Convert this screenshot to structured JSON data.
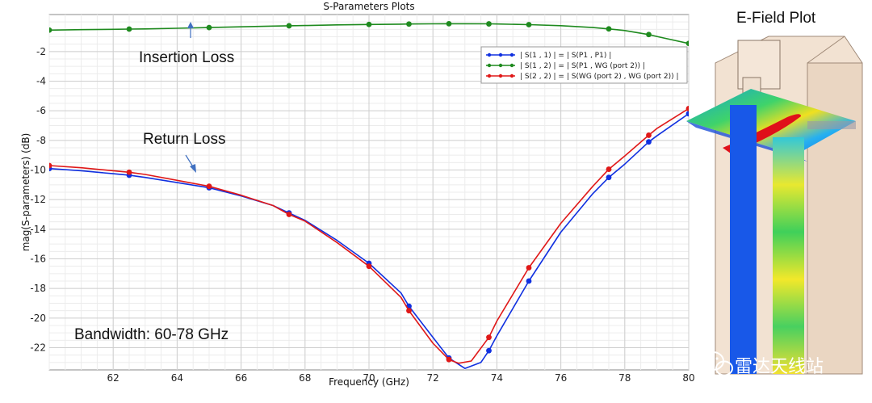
{
  "chart_data": {
    "type": "line",
    "title": "S-Parameters Plots",
    "xlabel": "Frequency (GHz)",
    "ylabel": "mag(S-parameters) (dB)",
    "xlim": [
      60,
      80
    ],
    "ylim": [
      -23.5,
      0.5
    ],
    "x_ticks": [
      62,
      64,
      66,
      68,
      70,
      72,
      74,
      76,
      78,
      80
    ],
    "y_ticks": [
      -2,
      -4,
      -6,
      -8,
      -10,
      -12,
      -14,
      -16,
      -18,
      -20,
      -22
    ],
    "grid": true,
    "legend_position": "top-right",
    "series": [
      {
        "name": "| S(1 , 1) | = | S(P1 , P1) |",
        "color": "#1030e0",
        "x": [
          60,
          61,
          62,
          62.5,
          63,
          64,
          65,
          66,
          67,
          67.5,
          68,
          69,
          70,
          71,
          71.25,
          72,
          72.5,
          73,
          73.5,
          73.75,
          74,
          75,
          76,
          77,
          77.5,
          78,
          78.75,
          79,
          80
        ],
        "y": [
          -9.9,
          -10.05,
          -10.25,
          -10.35,
          -10.5,
          -10.85,
          -11.2,
          -11.75,
          -12.4,
          -12.9,
          -13.4,
          -14.75,
          -16.3,
          -18.3,
          -19.2,
          -21.3,
          -22.7,
          -23.4,
          -23,
          -22.2,
          -21.2,
          -17.5,
          -14.2,
          -11.6,
          -10.5,
          -9.6,
          -8.1,
          -7.7,
          -6.2
        ],
        "markers": [
          [
            60,
            -9.9
          ],
          [
            62.5,
            -10.35
          ],
          [
            65,
            -11.2
          ],
          [
            67.5,
            -12.9
          ],
          [
            70,
            -16.3
          ],
          [
            71.25,
            -19.2
          ],
          [
            72.5,
            -22.7
          ],
          [
            73.75,
            -22.2
          ],
          [
            75,
            -17.5
          ],
          [
            77.5,
            -10.5
          ],
          [
            78.75,
            -8.1
          ],
          [
            80,
            -6.2
          ]
        ]
      },
      {
        "name": "| S(1 , 2) | = | S(P1 , WG (port 2)) |",
        "color": "#1e8a1e",
        "x": [
          60,
          61,
          62,
          62.5,
          63,
          64,
          65,
          66,
          67,
          67.5,
          68,
          69,
          70,
          71,
          71.25,
          72,
          72.5,
          73,
          73.75,
          74,
          75,
          76,
          77,
          77.5,
          78,
          78.75,
          79,
          80
        ],
        "y": [
          -0.55,
          -0.52,
          -0.5,
          -0.48,
          -0.47,
          -0.43,
          -0.38,
          -0.33,
          -0.28,
          -0.26,
          -0.24,
          -0.2,
          -0.17,
          -0.15,
          -0.14,
          -0.13,
          -0.12,
          -0.12,
          -0.13,
          -0.14,
          -0.18,
          -0.25,
          -0.38,
          -0.47,
          -0.58,
          -0.85,
          -0.98,
          -1.45
        ],
        "markers": [
          [
            60,
            -0.55
          ],
          [
            62.5,
            -0.48
          ],
          [
            65,
            -0.38
          ],
          [
            67.5,
            -0.26
          ],
          [
            70,
            -0.17
          ],
          [
            71.25,
            -0.14
          ],
          [
            72.5,
            -0.12
          ],
          [
            73.75,
            -0.13
          ],
          [
            75,
            -0.18
          ],
          [
            77.5,
            -0.47
          ],
          [
            78.75,
            -0.85
          ],
          [
            80,
            -1.45
          ]
        ]
      },
      {
        "name": "| S(2 , 2) | = | S(WG (port 2) , WG (port 2)) |",
        "color": "#e01818",
        "x": [
          60,
          61,
          62,
          62.5,
          63,
          64,
          65,
          66,
          67,
          67.5,
          68,
          69,
          70,
          71,
          71.25,
          72,
          72.5,
          72.8,
          73.2,
          73.75,
          74,
          75,
          76,
          77,
          77.5,
          78,
          78.75,
          79,
          80
        ],
        "y": [
          -9.7,
          -9.85,
          -10.05,
          -10.15,
          -10.3,
          -10.7,
          -11.1,
          -11.7,
          -12.4,
          -13,
          -13.45,
          -14.9,
          -16.5,
          -18.6,
          -19.5,
          -21.7,
          -22.8,
          -23.05,
          -22.9,
          -21.3,
          -20.2,
          -16.6,
          -13.6,
          -11.1,
          -9.95,
          -9.05,
          -7.65,
          -7.2,
          -5.85
        ],
        "markers": [
          [
            60,
            -9.7
          ],
          [
            62.5,
            -10.15
          ],
          [
            65,
            -11.1
          ],
          [
            67.5,
            -13
          ],
          [
            70,
            -16.5
          ],
          [
            71.25,
            -19.5
          ],
          [
            72.5,
            -22.8
          ],
          [
            73.75,
            -21.3
          ],
          [
            75,
            -16.6
          ],
          [
            77.5,
            -9.95
          ],
          [
            78.75,
            -7.65
          ],
          [
            80,
            -5.85
          ]
        ]
      }
    ],
    "annotations": [
      {
        "text": "Insertion Loss"
      },
      {
        "text": "Return Loss"
      },
      {
        "text": "Bandwidth: 60-78 GHz"
      }
    ]
  },
  "efield": {
    "title": "E-Field Plot"
  },
  "watermark": {
    "text": "雷达天线站"
  }
}
